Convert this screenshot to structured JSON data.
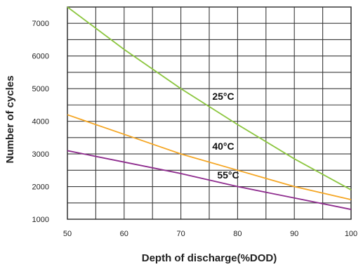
{
  "chart_data": {
    "type": "line",
    "xlabel": "Depth of discharge(%DOD)",
    "ylabel": "Number of cycles",
    "xlim": [
      50,
      100
    ],
    "ylim": [
      1000,
      7500
    ],
    "x_ticks": [
      50,
      60,
      70,
      80,
      90,
      100
    ],
    "y_ticks": [
      1000,
      2000,
      3000,
      4000,
      5000,
      6000,
      7000
    ],
    "grid": true,
    "series": [
      {
        "name": "25°C",
        "color": "#8cc63f",
        "x": [
          50,
          60,
          70,
          80,
          90,
          100
        ],
        "y": [
          7500,
          6200,
          5000,
          3900,
          2850,
          1900
        ]
      },
      {
        "name": "40°C",
        "color": "#f5a623",
        "x": [
          50,
          60,
          70,
          80,
          90,
          100
        ],
        "y": [
          4200,
          3600,
          3000,
          2500,
          2000,
          1600
        ]
      },
      {
        "name": "55°C",
        "color": "#8e2c8e",
        "x": [
          50,
          60,
          70,
          80,
          90,
          100
        ],
        "y": [
          3100,
          2750,
          2400,
          2000,
          1650,
          1300
        ]
      }
    ]
  }
}
